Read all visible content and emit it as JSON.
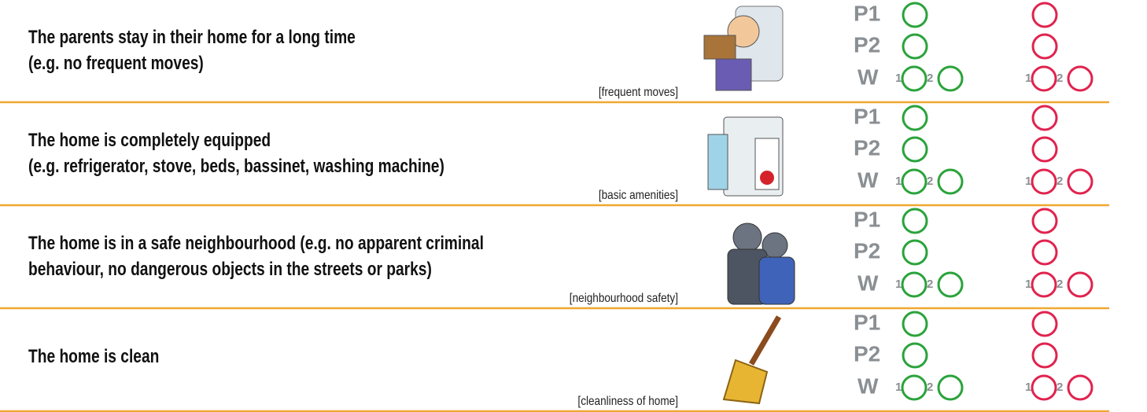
{
  "rows": [
    {
      "statement": [
        "The parents stay in their home for a long time",
        "(e.g. no frequent moves)"
      ],
      "tag": "[frequent moves]",
      "labels": {
        "p1": "P1",
        "p2": "P2",
        "w": "W",
        "one": "1",
        "two": "2"
      }
    },
    {
      "statement": [
        "The home is completely equipped",
        "(e.g. refrigerator, stove, beds, bassinet, washing machine)"
      ],
      "tag": "[basic amenities]",
      "labels": {
        "p1": "P1",
        "p2": "P2",
        "w": "W",
        "one": "1",
        "two": "2"
      }
    },
    {
      "statement": [
        "The home is in a safe neighbourhood (e.g. no apparent criminal",
        "behaviour, no dangerous objects in the streets or parks)"
      ],
      "tag": "[neighbourhood safety]",
      "labels": {
        "p1": "P1",
        "p2": "P2",
        "w": "W",
        "one": "1",
        "two": "2"
      }
    },
    {
      "statement": [
        "The home is clean"
      ],
      "tag": "[cleanliness of home]",
      "labels": {
        "p1": "P1",
        "p2": "P2",
        "w": "W",
        "one": "1",
        "two": "2"
      }
    }
  ]
}
